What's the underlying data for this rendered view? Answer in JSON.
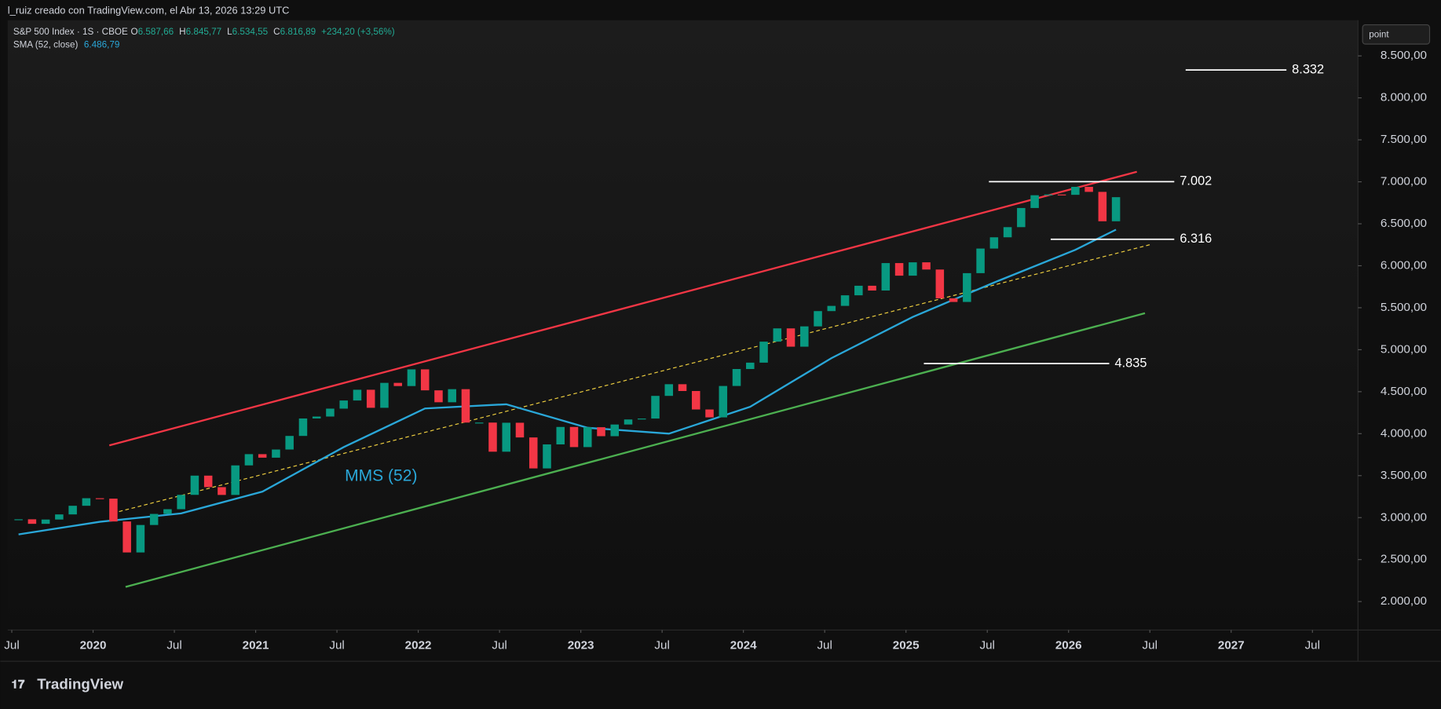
{
  "header": {
    "credit": "l_ruiz creado con TradingView.com, el Abr 13, 2026 13:29 UTC",
    "symbol": "S&P 500 Index · 1S · CBOE",
    "ohlc": [
      {
        "key": "O",
        "value": "6.587,66"
      },
      {
        "key": "H",
        "value": "6.845,77"
      },
      {
        "key": "L",
        "value": "6.534,55"
      },
      {
        "key": "C",
        "value": "6.816,89"
      },
      {
        "key": "",
        "value": "+234,20 (+3,56%)"
      }
    ],
    "indicator": "SMA (52, close)",
    "indicator_value": "6.486,79",
    "unit_button": "point",
    "brand": "TradingView"
  },
  "chart_data": {
    "type": "candlestick",
    "x": [
      "2019-07",
      "2019-08",
      "2019-09",
      "2019-10",
      "2019-11",
      "2019-12",
      "2020-01",
      "2020-02",
      "2020-03",
      "2020-04",
      "2020-05",
      "2020-06",
      "2020-07",
      "2020-08",
      "2020-09",
      "2020-10",
      "2020-11",
      "2020-12",
      "2021-01",
      "2021-02",
      "2021-03",
      "2021-04",
      "2021-05",
      "2021-06",
      "2021-07",
      "2021-08",
      "2021-09",
      "2021-10",
      "2021-11",
      "2021-12",
      "2022-01",
      "2022-02",
      "2022-03",
      "2022-04",
      "2022-05",
      "2022-06",
      "2022-07",
      "2022-08",
      "2022-09",
      "2022-10",
      "2022-11",
      "2022-12",
      "2023-01",
      "2023-02",
      "2023-03",
      "2023-04",
      "2023-05",
      "2023-06",
      "2023-07",
      "2023-08",
      "2023-09",
      "2023-10",
      "2023-11",
      "2023-12",
      "2024-01",
      "2024-02",
      "2024-03",
      "2024-04",
      "2024-05",
      "2024-06",
      "2024-07",
      "2024-08",
      "2024-09",
      "2024-10",
      "2024-11",
      "2024-12",
      "2025-01",
      "2025-02",
      "2025-03",
      "2025-04",
      "2025-05",
      "2025-06",
      "2025-07",
      "2025-08",
      "2025-09",
      "2025-10",
      "2025-11",
      "2025-12",
      "2026-01",
      "2026-02",
      "2026-03",
      "2026-04"
    ],
    "close": [
      2980,
      2926,
      2977,
      3038,
      3141,
      3231,
      3226,
      2954,
      2585,
      2912,
      3044,
      3100,
      3271,
      3500,
      3363,
      3270,
      3622,
      3756,
      3714,
      3811,
      3973,
      4181,
      4204,
      4298,
      4395,
      4523,
      4308,
      4605,
      4567,
      4766,
      4516,
      4374,
      4530,
      4132,
      4132,
      3785,
      4130,
      3955,
      3586,
      3872,
      4080,
      3840,
      4077,
      3970,
      4109,
      4169,
      4180,
      4450,
      4589,
      4508,
      4288,
      4194,
      4568,
      4770,
      4846,
      5096,
      5254,
      5036,
      5278,
      5460,
      5522,
      5648,
      5762,
      5705,
      6032,
      5882,
      6041,
      5955,
      5612,
      5569,
      5912,
      6205,
      6339,
      6460,
      6688,
      6840,
      6849,
      6845,
      6940,
      6880,
      6530,
      6817
    ],
    "up_color": "#089981",
    "down_color": "#f23645",
    "sma": {
      "name": "MMS (52)",
      "color": "#2aa7d8",
      "x": [
        "2019-07",
        "2020-01",
        "2020-07",
        "2021-01",
        "2021-07",
        "2022-01",
        "2022-07",
        "2023-01",
        "2023-07",
        "2024-01",
        "2024-07",
        "2025-01",
        "2025-07",
        "2026-01",
        "2026-04"
      ],
      "values": [
        2800,
        2950,
        3050,
        3310,
        3840,
        4300,
        4350,
        4070,
        4000,
        4320,
        4900,
        5390,
        5800,
        6190,
        6430
      ]
    },
    "trendlines": [
      {
        "color": "#f23645",
        "x": [
          2020.1,
          2026.42
        ],
        "values": [
          3860,
          7120
        ]
      },
      {
        "color": "#4caf50",
        "x": [
          2020.2,
          2026.47
        ],
        "values": [
          2175,
          5435
        ]
      },
      {
        "color": "#f0d040",
        "dashed": true,
        "x": [
          2020.16,
          2026.51
        ],
        "values": [
          3072,
          6256
        ]
      }
    ],
    "levels": [
      {
        "value": 8332,
        "label": "8.332",
        "x": [
          2026.72,
          2027.34
        ]
      },
      {
        "value": 7002,
        "label": "7.002",
        "x": [
          2025.51,
          2026.65
        ]
      },
      {
        "value": 6316,
        "label": "6.316",
        "x": [
          2025.89,
          2026.65
        ]
      },
      {
        "value": 4835,
        "label": "4.835",
        "x": [
          2025.11,
          2026.25
        ]
      }
    ],
    "xlim": [
      2019.475,
      2027.78
    ],
    "xticks": [
      {
        "value": 2019.5,
        "label": "Jul"
      },
      2020,
      {
        "value": 2020.5,
        "label": "Jul"
      },
      2021,
      {
        "value": 2021.5,
        "label": "Jul"
      },
      2022,
      {
        "value": 2022.5,
        "label": "Jul"
      },
      2023,
      {
        "value": 2023.5,
        "label": "Jul"
      },
      2024,
      {
        "value": 2024.5,
        "label": "Jul"
      },
      2025,
      {
        "value": 2025.5,
        "label": "Jul"
      },
      2026,
      {
        "value": 2026.5,
        "label": "Jul"
      },
      2027,
      {
        "value": 2027.5,
        "label": "Jul"
      }
    ],
    "ylim": [
      1661,
      8925
    ],
    "yticks": [
      {
        "value": 2000,
        "label": "2.000,00"
      },
      {
        "value": 2500,
        "label": "2.500,00"
      },
      {
        "value": 3000,
        "label": "3.000,00"
      },
      {
        "value": 3500,
        "label": "3.500,00"
      },
      {
        "value": 4000,
        "label": "4.000,00"
      },
      {
        "value": 4500,
        "label": "4.500,00"
      },
      {
        "value": 5000,
        "label": "5.000,00"
      },
      {
        "value": 5500,
        "label": "5.500,00"
      },
      {
        "value": 6000,
        "label": "6.000,00"
      },
      {
        "value": 6500,
        "label": "6.500,00"
      },
      {
        "value": 7000,
        "label": "7.000,00"
      },
      {
        "value": 7500,
        "label": "7.500,00"
      },
      {
        "value": 8000,
        "label": "8.000,00"
      },
      {
        "value": 8500,
        "label": "8.500,00"
      }
    ]
  }
}
